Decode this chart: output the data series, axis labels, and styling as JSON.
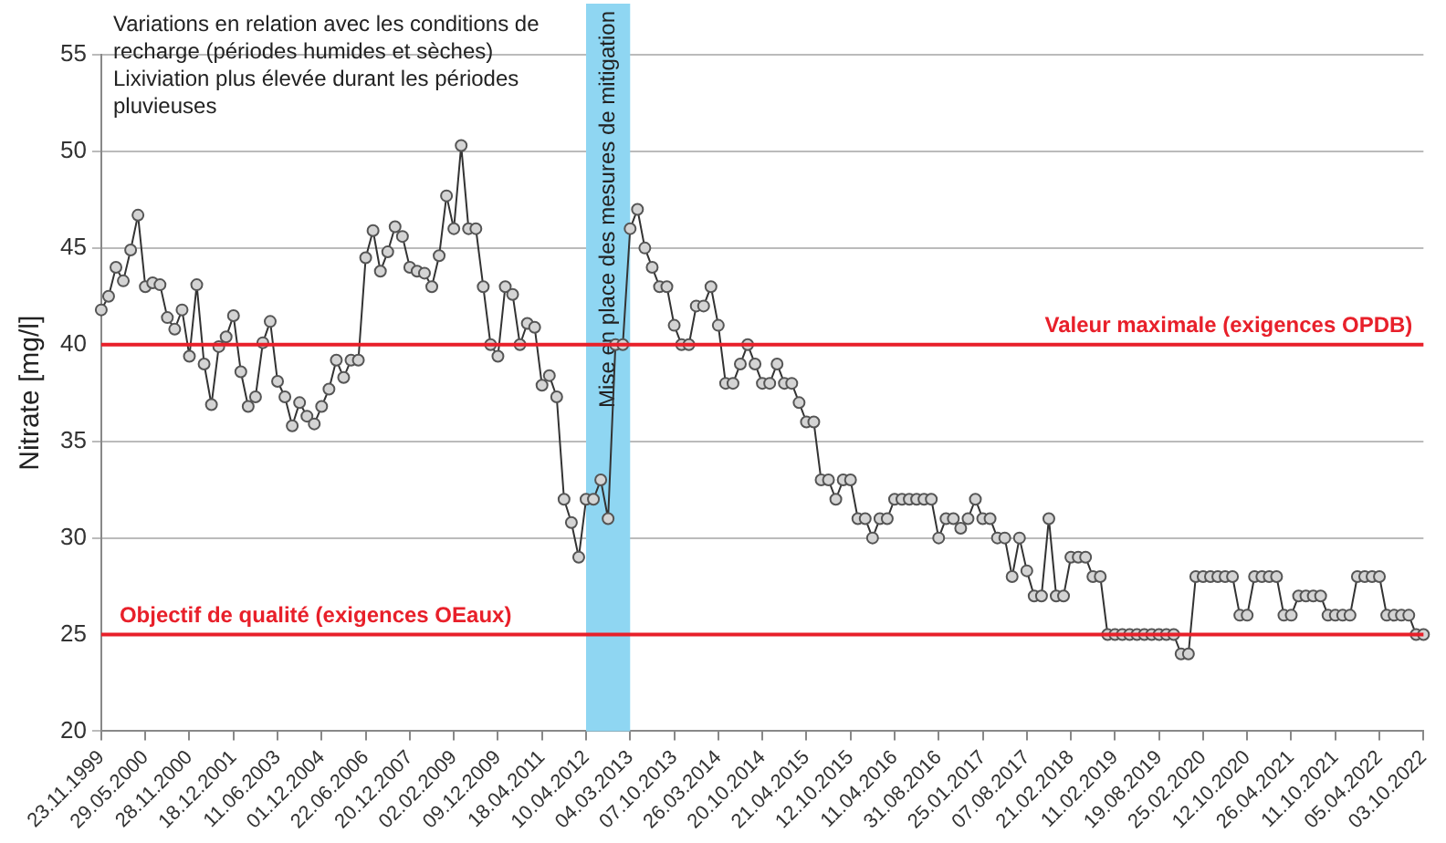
{
  "chart_data": {
    "type": "line",
    "ylabel": "Nitrate [mg/l]",
    "categories": [
      "23.11.1999",
      null,
      null,
      null,
      null,
      null,
      "29.05.2000",
      null,
      null,
      null,
      null,
      null,
      "28.11.2000",
      null,
      null,
      null,
      null,
      null,
      "18.12.2001",
      null,
      null,
      null,
      null,
      null,
      "11.06.2003",
      null,
      null,
      null,
      null,
      null,
      "01.12.2004",
      null,
      null,
      null,
      null,
      null,
      "22.06.2006",
      null,
      null,
      null,
      null,
      null,
      "20.12.2007",
      null,
      null,
      null,
      null,
      null,
      "02.02.2009",
      null,
      null,
      null,
      null,
      null,
      "09.12.2009",
      null,
      null,
      null,
      null,
      null,
      "18.04.2011",
      null,
      null,
      null,
      null,
      null,
      "10.04.2012",
      null,
      null,
      null,
      null,
      null,
      "04.03.2013",
      null,
      null,
      null,
      null,
      null,
      "07.10.2013",
      null,
      null,
      null,
      null,
      null,
      "26.03.2014",
      null,
      null,
      null,
      null,
      null,
      "20.10.2014",
      null,
      null,
      null,
      null,
      null,
      "21.04.2015",
      null,
      null,
      null,
      null,
      null,
      "12.10.2015",
      null,
      null,
      null,
      null,
      null,
      "11.04.2016",
      null,
      null,
      null,
      null,
      null,
      "31.08.2016",
      null,
      null,
      null,
      null,
      null,
      "25.01.2017",
      null,
      null,
      null,
      null,
      null,
      "07.08.2017",
      null,
      null,
      null,
      null,
      null,
      "21.02.2018",
      null,
      null,
      null,
      null,
      null,
      "11.02.2019",
      null,
      null,
      null,
      null,
      null,
      "19.08.2019",
      null,
      null,
      null,
      null,
      null,
      "25.02.2020",
      null,
      null,
      null,
      null,
      null,
      "12.10.2020",
      null,
      null,
      null,
      null,
      null,
      "26.04.2021",
      null,
      null,
      null,
      null,
      null,
      "11.10.2021",
      null,
      null,
      null,
      null,
      null,
      "05.04.2022",
      null,
      null,
      null,
      null,
      null,
      "03.10.2022"
    ],
    "series": [
      {
        "color": "#333333",
        "values": [
          41.8,
          42.5,
          44,
          43.3,
          44.9,
          46.7,
          43,
          43.2,
          43.1,
          41.4,
          40.8,
          41.8,
          39.4,
          43.1,
          39,
          36.9,
          39.9,
          40.4,
          41.5,
          38.6,
          36.8,
          37.3,
          40.1,
          41.2,
          38.1,
          37.3,
          35.8,
          37,
          36.3,
          35.9,
          36.8,
          37.7,
          39.2,
          38.3,
          39.2,
          39.2,
          44.5,
          45.9,
          43.8,
          44.8,
          46.1,
          45.6,
          44,
          43.8,
          43.7,
          43,
          44.6,
          47.7,
          46,
          50.3,
          46,
          46,
          43,
          40,
          39.4,
          43,
          42.6,
          40,
          41.1,
          40.9,
          37.9,
          38.4,
          37.3,
          32,
          30.8,
          29,
          32,
          32,
          33,
          31,
          40,
          40,
          46,
          47,
          45,
          44,
          43,
          43,
          41,
          40,
          40,
          42,
          42,
          43,
          41,
          38,
          38,
          39,
          40,
          39,
          38,
          38,
          39,
          38,
          38,
          37,
          36,
          36,
          33,
          33,
          32,
          33,
          33,
          31,
          31,
          30,
          31,
          31,
          32,
          32,
          32,
          32,
          32,
          32,
          30,
          31,
          31,
          30.5,
          31,
          32,
          31,
          31,
          30,
          30,
          28,
          30,
          28.3,
          27,
          27,
          31,
          27,
          27,
          29,
          29,
          29,
          28,
          28,
          25,
          25,
          25,
          25,
          25,
          25,
          25,
          25,
          25,
          25,
          24,
          24,
          28,
          28,
          28,
          28,
          28,
          28,
          26,
          26,
          28,
          28,
          28,
          28,
          26,
          26,
          27,
          27,
          27,
          27,
          26,
          26,
          26,
          26,
          28,
          28,
          28,
          28,
          26,
          26,
          26,
          26,
          25,
          25
        ]
      }
    ],
    "ylim": [
      20,
      55
    ],
    "yticks": [
      20,
      25,
      30,
      35,
      40,
      45,
      50,
      55
    ],
    "grid": "y",
    "legend": false,
    "marker": "circle",
    "line_style": "solid",
    "ref_lines": [
      {
        "axis": "y",
        "value": 40,
        "label": "Valeur maximale (exigences OPDB)",
        "color": "#e8202a"
      },
      {
        "axis": "y",
        "value": 25,
        "label": "Objectif de qualité (exigences OEaux)",
        "color": "#e8202a"
      }
    ],
    "bands": [
      {
        "axis": "x",
        "from": "10.04.2012",
        "to": "04.03.2013",
        "label": "Mise en place des mesures de mitigation",
        "color": "#8fd6f2"
      }
    ],
    "annotations": [
      "Variations en relation avec les conditions de recharge (périodes humides et sèches)",
      "Lixiviation plus élevée durant les périodes pluvieuses"
    ]
  }
}
